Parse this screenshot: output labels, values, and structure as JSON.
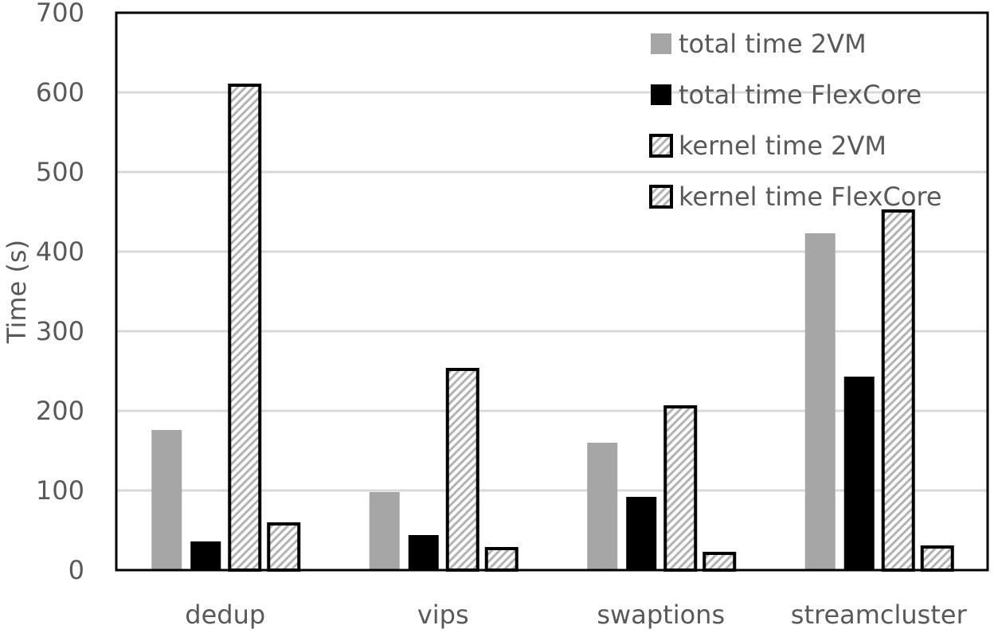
{
  "chart_data": {
    "type": "bar",
    "title": "",
    "xlabel": "",
    "ylabel": "Time (s)",
    "ylim": [
      0,
      700
    ],
    "yticks": [
      0,
      100,
      200,
      300,
      400,
      500,
      600,
      700
    ],
    "grid": true,
    "legend_position": "top-right",
    "categories": [
      "dedup",
      "vips",
      "swaptions",
      "streamcluster"
    ],
    "series": [
      {
        "name": "total time 2VM",
        "style": "solid",
        "color": "#a6a6a6",
        "values": [
          176,
          98,
          160,
          423
        ]
      },
      {
        "name": "total time FlexCore",
        "style": "solid",
        "color": "#000000",
        "values": [
          36,
          44,
          92,
          243
        ]
      },
      {
        "name": "kernel time 2VM",
        "style": "hatch",
        "color": "#000000",
        "values": [
          609,
          252,
          205,
          451
        ]
      },
      {
        "name": "kernel time FlexCore",
        "style": "hatch",
        "color": "#000000",
        "values": [
          58,
          27,
          21,
          29
        ]
      }
    ]
  }
}
